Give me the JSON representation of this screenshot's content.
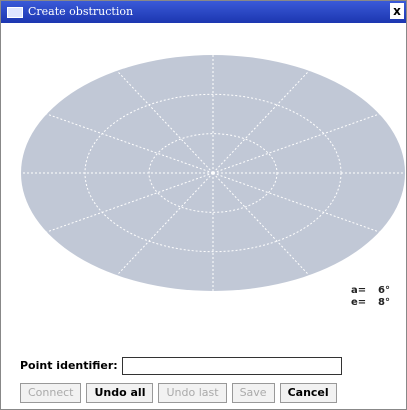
{
  "window": {
    "title": "Create obstruction",
    "close": "x"
  },
  "readout": {
    "azimuth_label": "a=",
    "azimuth_value": "6°",
    "elevation_label": "e=",
    "elevation_value": "8°"
  },
  "form": {
    "label": "Point identifier:"
  },
  "buttons": [
    "Connect",
    "Undo all",
    "Undo last",
    "Save",
    "Cancel"
  ]
}
